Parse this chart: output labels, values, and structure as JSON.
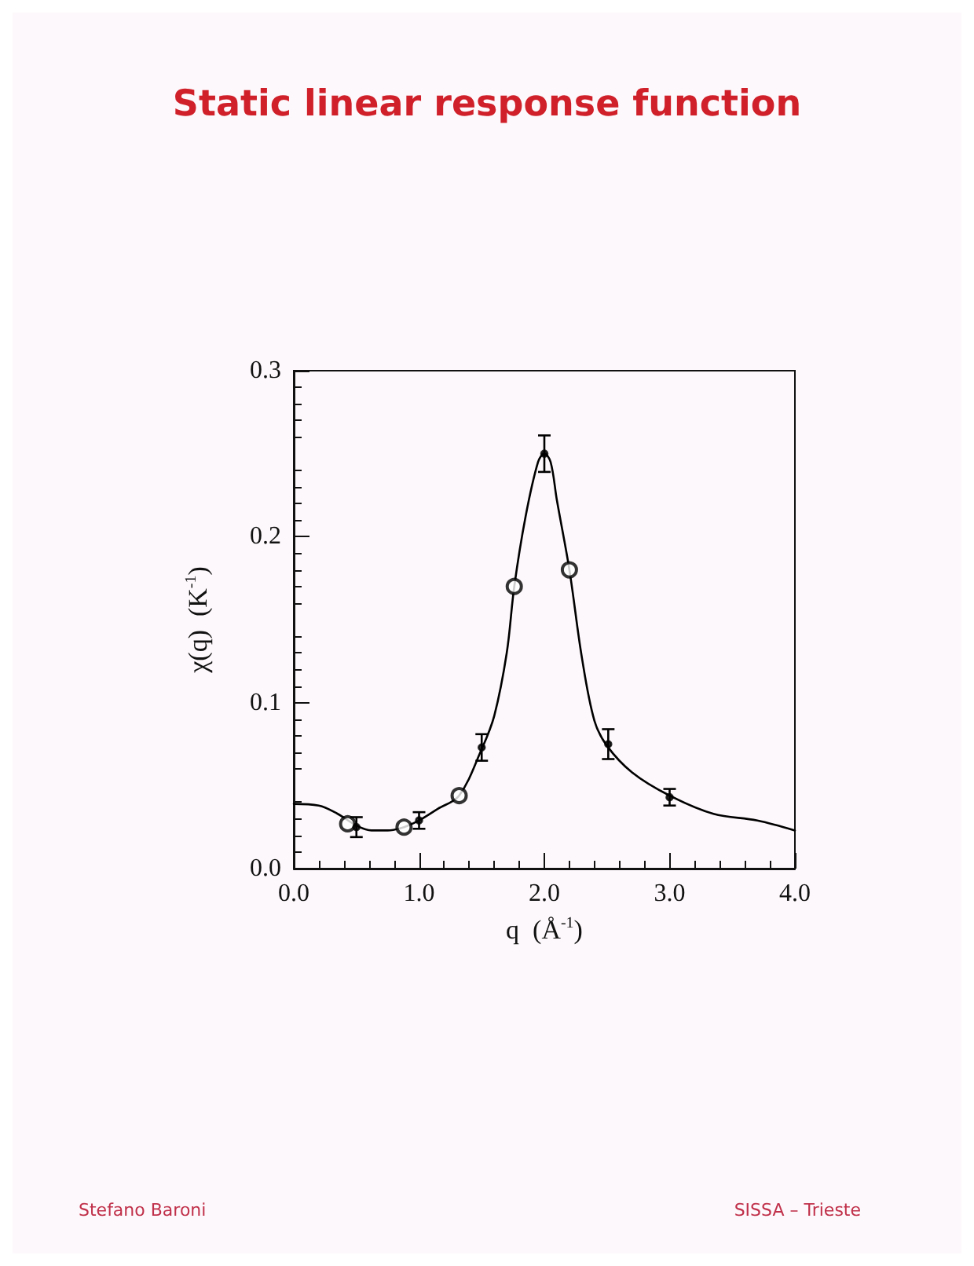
{
  "chart_data": {
    "type": "line",
    "title": "Static linear response function",
    "xlabel": "q  (Å$^{-1}$)",
    "ylabel": "χ(q)  (K$^{-1}$)",
    "xlim": [
      0,
      4
    ],
    "ylim": [
      0,
      0.3
    ],
    "xticks": [
      {
        "value": 0,
        "label": "0.0"
      },
      {
        "value": 1,
        "label": "1.0"
      },
      {
        "value": 2,
        "label": "2.0"
      },
      {
        "value": 3,
        "label": "3.0"
      },
      {
        "value": 4,
        "label": "4.0"
      }
    ],
    "yticks": [
      {
        "value": 0,
        "label": "0.0"
      },
      0.1,
      0.2,
      0.3
    ],
    "grid": false,
    "line_style": "solid",
    "series": [
      {
        "color": "#000000",
        "marker": "none",
        "x": [
          0,
          0.2,
          0.35,
          0.5,
          0.62,
          0.75,
          0.88,
          1.0,
          1.15,
          1.32,
          1.5,
          1.6,
          1.7,
          1.76,
          1.85,
          1.95,
          2.0,
          2.05,
          2.1,
          2.2,
          2.3,
          2.4,
          2.5,
          2.7,
          3.0,
          3.35,
          3.7,
          4.0
        ],
        "values": [
          0.039,
          0.038,
          0.033,
          0.026,
          0.023,
          0.023,
          0.025,
          0.029,
          0.036,
          0.044,
          0.072,
          0.092,
          0.13,
          0.17,
          0.212,
          0.245,
          0.25,
          0.245,
          0.222,
          0.18,
          0.127,
          0.089,
          0.074,
          0.058,
          0.044,
          0.033,
          0.029,
          0.023
        ]
      },
      {
        "type": "scatter",
        "color": "#000000",
        "marker": "circle",
        "x": [
          0.43,
          0.88,
          1.32,
          1.76,
          2.2
        ],
        "values": [
          0.027,
          0.025,
          0.044,
          0.17,
          0.18
        ]
      },
      {
        "type": "scatter",
        "color": "#000000",
        "marker": "dot",
        "x": [
          0.5,
          1.0,
          1.5,
          2.0,
          2.51,
          3.0
        ],
        "values": [
          0.025,
          0.029,
          0.073,
          0.25,
          0.075,
          0.043
        ],
        "errors": [
          0.006,
          0.005,
          0.008,
          0.011,
          0.009,
          0.005
        ]
      }
    ],
    "annotations": [
      "Stefano Baroni",
      "SISSA – Trieste"
    ]
  }
}
